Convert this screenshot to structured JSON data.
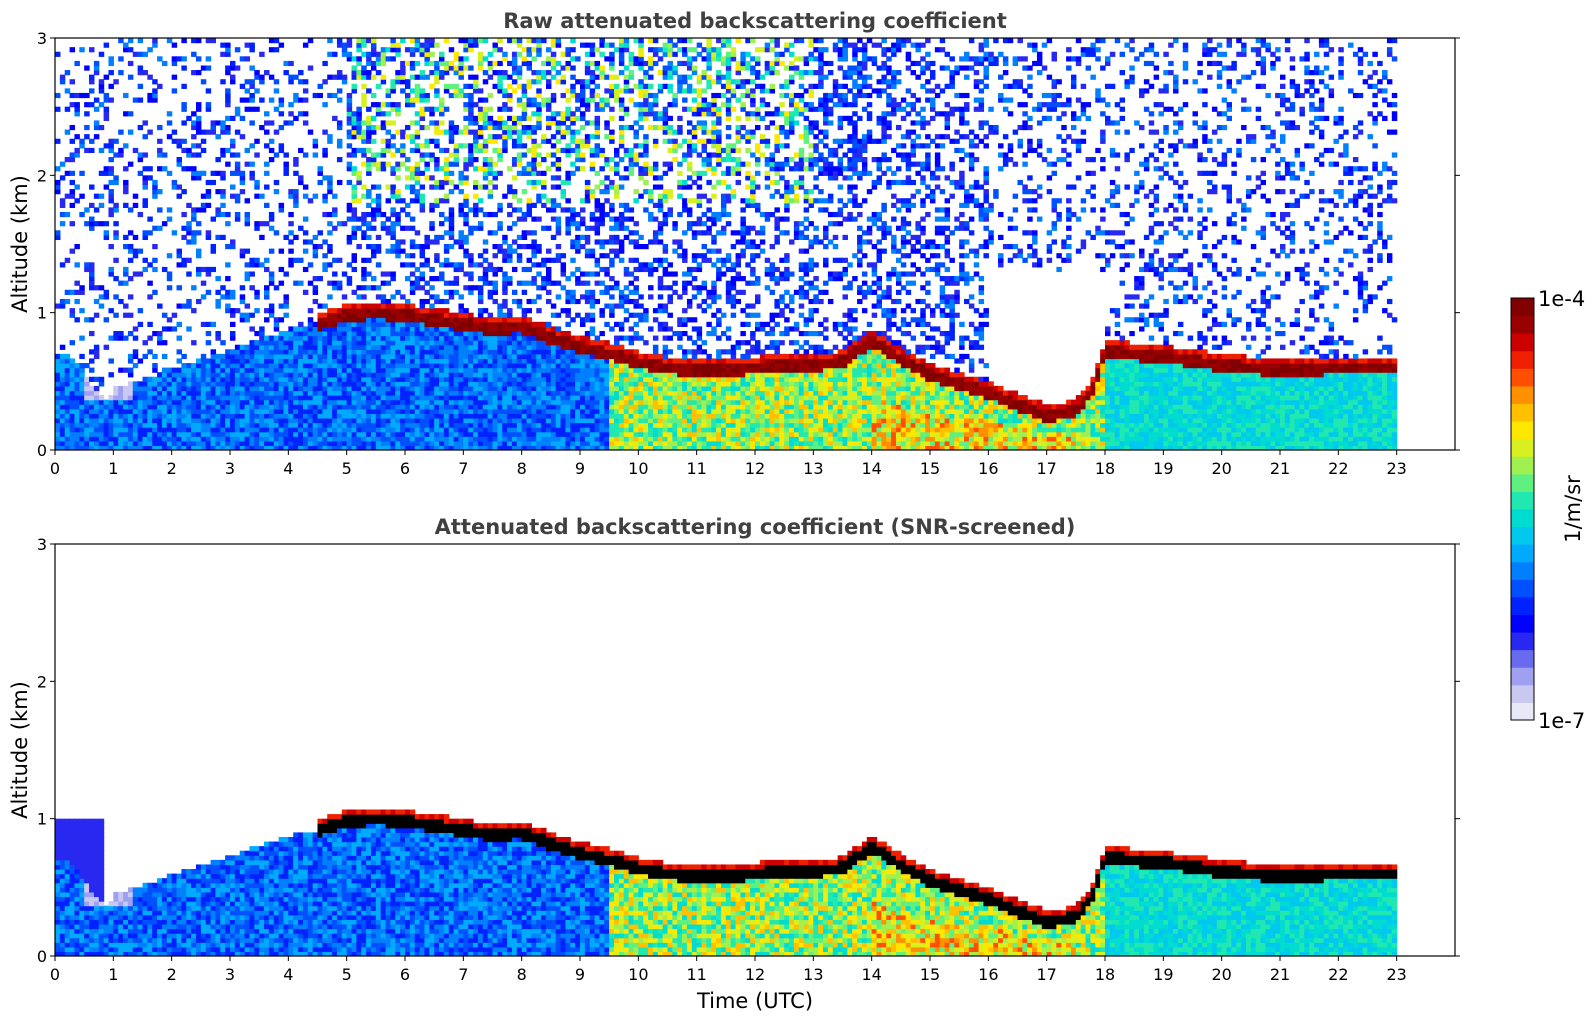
{
  "chart_data": [
    {
      "type": "heatmap",
      "title": "Raw attenuated backscattering coefficient",
      "xlabel": "",
      "ylabel": "Altitude (km)",
      "xlim": [
        0,
        24
      ],
      "ylim": [
        0,
        3
      ],
      "xticks": [
        "0",
        "1",
        "2",
        "3",
        "4",
        "5",
        "6",
        "7",
        "8",
        "9",
        "10",
        "11",
        "12",
        "13",
        "14",
        "15",
        "16",
        "17",
        "18",
        "19",
        "20",
        "21",
        "22",
        "23"
      ],
      "yticks": [
        "0",
        "1",
        "2",
        "3"
      ],
      "data_end_time": 23,
      "cloud_base_km": {
        "x": [
          4.5,
          5.0,
          5.5,
          6.0,
          6.5,
          7.0,
          7.5,
          8.0,
          8.5,
          9.0,
          9.5,
          10.0,
          10.5,
          11.0,
          11.5,
          12.0,
          12.5,
          13.0,
          13.5,
          14.0,
          14.5,
          15.0,
          15.5,
          16.0,
          16.5,
          17.0,
          17.5,
          17.8,
          18.0,
          18.5,
          19.0,
          19.5,
          20.0,
          20.5,
          21.0,
          21.5,
          22.0,
          22.5,
          23.0
        ],
        "y": [
          0.92,
          0.98,
          1.0,
          0.98,
          0.95,
          0.92,
          0.88,
          0.9,
          0.82,
          0.75,
          0.7,
          0.64,
          0.6,
          0.58,
          0.58,
          0.6,
          0.62,
          0.62,
          0.64,
          0.8,
          0.66,
          0.55,
          0.48,
          0.42,
          0.33,
          0.25,
          0.28,
          0.45,
          0.72,
          0.7,
          0.68,
          0.65,
          0.62,
          0.6,
          0.58,
          0.59,
          0.6,
          0.6,
          0.6
        ]
      },
      "noise": true
    },
    {
      "type": "heatmap",
      "title": "Attenuated backscattering coefficient (SNR-screened)",
      "xlabel": "Time (UTC)",
      "ylabel": "Altitude (km)",
      "xlim": [
        0,
        24
      ],
      "ylim": [
        0,
        3
      ],
      "xticks": [
        "0",
        "1",
        "2",
        "3",
        "4",
        "5",
        "6",
        "7",
        "8",
        "9",
        "10",
        "11",
        "12",
        "13",
        "14",
        "15",
        "16",
        "17",
        "18",
        "19",
        "20",
        "21",
        "22",
        "23"
      ],
      "yticks": [
        "0",
        "1",
        "2",
        "3"
      ],
      "data_end_time": 23,
      "noise": false
    }
  ],
  "colorbar": {
    "label": "1/m/sr",
    "max_label": "1e-4",
    "min_label": "1e-7",
    "colors": [
      "#e8e8f6",
      "#c8c8f0",
      "#a0a0f0",
      "#6a6af0",
      "#2828f0",
      "#0000ff",
      "#0022ff",
      "#0050ff",
      "#0080ff",
      "#00aaff",
      "#00c8ee",
      "#00ddd0",
      "#20e8b0",
      "#60f080",
      "#a0f050",
      "#d8f020",
      "#ffe800",
      "#ffc000",
      "#ff9000",
      "#ff5000",
      "#ee2000",
      "#cc0000",
      "#990000",
      "#800000"
    ]
  }
}
